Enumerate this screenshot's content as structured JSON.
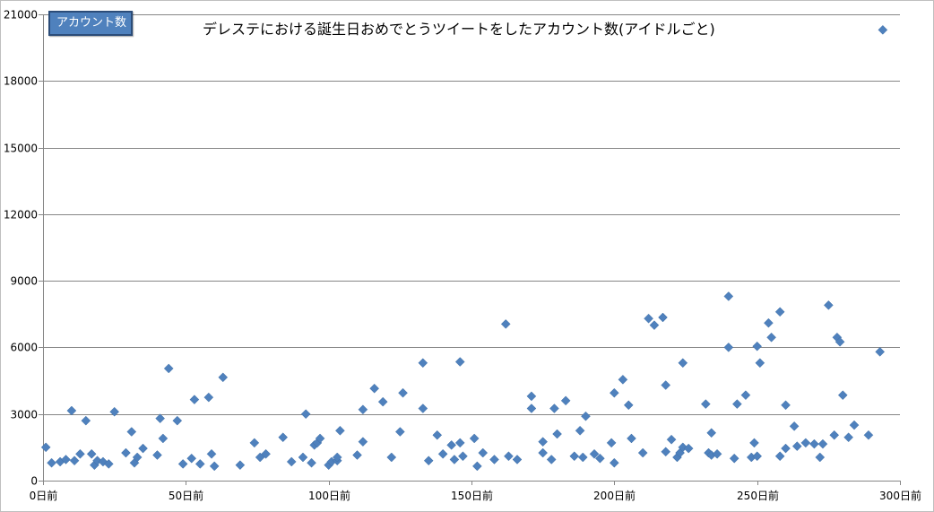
{
  "chart_data": {
    "type": "scatter",
    "title": "デレステにおける誕生日おめでとうツイートをしたアカウント数(アイドルごと)",
    "legend_label": "アカウント数",
    "series_color": "#4f81bd",
    "grid": true,
    "xlim": [
      0,
      300
    ],
    "ylim": [
      0,
      21000
    ],
    "x_ticks": [
      0,
      50,
      100,
      150,
      200,
      250,
      300
    ],
    "x_tick_labels": [
      "0日前",
      "50日前",
      "100日前",
      "150日前",
      "200日前",
      "250日前",
      "300日前"
    ],
    "y_ticks": [
      0,
      3000,
      6000,
      9000,
      12000,
      15000,
      18000,
      21000
    ],
    "y_tick_labels": [
      "0",
      "3000",
      "6000",
      "9000",
      "12000",
      "15000",
      "18000",
      "21000"
    ],
    "points": [
      [
        1,
        1500
      ],
      [
        3,
        800
      ],
      [
        6,
        850
      ],
      [
        8,
        950
      ],
      [
        10,
        3150
      ],
      [
        11,
        900
      ],
      [
        13,
        1200
      ],
      [
        15,
        2700
      ],
      [
        17,
        1200
      ],
      [
        18,
        700
      ],
      [
        19,
        900
      ],
      [
        21,
        850
      ],
      [
        23,
        750
      ],
      [
        25,
        3100
      ],
      [
        29,
        1250
      ],
      [
        31,
        2200
      ],
      [
        32,
        800
      ],
      [
        33,
        1050
      ],
      [
        35,
        1450
      ],
      [
        40,
        1150
      ],
      [
        41,
        2800
      ],
      [
        42,
        1900
      ],
      [
        44,
        5050
      ],
      [
        47,
        2700
      ],
      [
        49,
        750
      ],
      [
        52,
        1000
      ],
      [
        53,
        3650
      ],
      [
        55,
        750
      ],
      [
        58,
        3750
      ],
      [
        59,
        1200
      ],
      [
        60,
        650
      ],
      [
        63,
        4650
      ],
      [
        69,
        700
      ],
      [
        74,
        1700
      ],
      [
        76,
        1050
      ],
      [
        78,
        1200
      ],
      [
        84,
        1950
      ],
      [
        87,
        850
      ],
      [
        91,
        1050
      ],
      [
        92,
        3000
      ],
      [
        94,
        800
      ],
      [
        95,
        1600
      ],
      [
        96,
        1700
      ],
      [
        97,
        1900
      ],
      [
        100,
        700
      ],
      [
        101,
        850
      ],
      [
        103,
        900
      ],
      [
        103,
        1050
      ],
      [
        104,
        2250
      ],
      [
        110,
        1150
      ],
      [
        112,
        3200
      ],
      [
        112,
        1750
      ],
      [
        116,
        4150
      ],
      [
        119,
        3550
      ],
      [
        122,
        1050
      ],
      [
        125,
        2200
      ],
      [
        126,
        3950
      ],
      [
        133,
        5300
      ],
      [
        133,
        3250
      ],
      [
        135,
        900
      ],
      [
        138,
        2050
      ],
      [
        140,
        1200
      ],
      [
        143,
        1600
      ],
      [
        144,
        950
      ],
      [
        146,
        5350
      ],
      [
        146,
        1700
      ],
      [
        147,
        1100
      ],
      [
        151,
        1900
      ],
      [
        152,
        650
      ],
      [
        154,
        1250
      ],
      [
        158,
        950
      ],
      [
        162,
        7050
      ],
      [
        163,
        1100
      ],
      [
        166,
        950
      ],
      [
        171,
        3800
      ],
      [
        171,
        3250
      ],
      [
        175,
        1750
      ],
      [
        175,
        1250
      ],
      [
        178,
        950
      ],
      [
        179,
        3250
      ],
      [
        180,
        2100
      ],
      [
        183,
        3600
      ],
      [
        186,
        1100
      ],
      [
        188,
        2250
      ],
      [
        189,
        1050
      ],
      [
        190,
        2900
      ],
      [
        193,
        1200
      ],
      [
        195,
        1000
      ],
      [
        199,
        1700
      ],
      [
        200,
        3950
      ],
      [
        200,
        800
      ],
      [
        203,
        4550
      ],
      [
        205,
        3400
      ],
      [
        206,
        1900
      ],
      [
        210,
        1250
      ],
      [
        212,
        7300
      ],
      [
        214,
        7000
      ],
      [
        217,
        7350
      ],
      [
        218,
        4300
      ],
      [
        218,
        1300
      ],
      [
        220,
        1850
      ],
      [
        222,
        1050
      ],
      [
        223,
        1250
      ],
      [
        224,
        5300
      ],
      [
        224,
        1500
      ],
      [
        226,
        1450
      ],
      [
        232,
        3450
      ],
      [
        233,
        1250
      ],
      [
        234,
        2150
      ],
      [
        234,
        1150
      ],
      [
        236,
        1200
      ],
      [
        240,
        8300
      ],
      [
        240,
        6000
      ],
      [
        242,
        1000
      ],
      [
        243,
        3450
      ],
      [
        246,
        3850
      ],
      [
        248,
        1050
      ],
      [
        249,
        1700
      ],
      [
        250,
        6050
      ],
      [
        250,
        1100
      ],
      [
        251,
        5300
      ],
      [
        254,
        7100
      ],
      [
        255,
        6450
      ],
      [
        258,
        7600
      ],
      [
        258,
        1100
      ],
      [
        260,
        3400
      ],
      [
        260,
        1450
      ],
      [
        263,
        2450
      ],
      [
        264,
        1550
      ],
      [
        267,
        1700
      ],
      [
        270,
        1650
      ],
      [
        272,
        1050
      ],
      [
        273,
        1650
      ],
      [
        275,
        7900
      ],
      [
        277,
        2050
      ],
      [
        278,
        6450
      ],
      [
        279,
        6250
      ],
      [
        280,
        3850
      ],
      [
        282,
        1950
      ],
      [
        284,
        2500
      ],
      [
        289,
        2050
      ],
      [
        293,
        5800
      ],
      [
        294,
        20300
      ]
    ]
  }
}
